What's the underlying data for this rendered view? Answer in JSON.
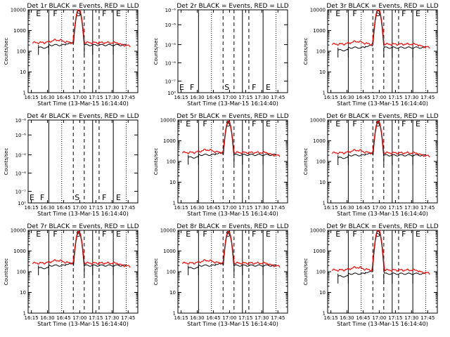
{
  "figure": {
    "x_ticks": [
      "16:15",
      "16:30",
      "16:45",
      "17:00",
      "17:15",
      "17:30",
      "17:45"
    ],
    "x_label": "Start Time (13-Mar-15 16:14:40)",
    "y_label": "Counts/sec"
  },
  "chart_data": [
    {
      "type": "line",
      "title": "Det 1r BLACK = Events, RED = LLD",
      "yscale": "log",
      "ylim": [
        1,
        10000
      ],
      "y_tick_labels": [
        "1",
        "10",
        "100",
        "1000",
        "10000"
      ],
      "has_data": true,
      "peak": 11000,
      "base_red": 260,
      "base_black": 200,
      "segment_labels": [
        "E",
        "F",
        "S",
        "F",
        "E"
      ],
      "series": [
        {
          "name": "Events",
          "color": "#000000"
        },
        {
          "name": "LLD",
          "color": "#ff0000"
        }
      ]
    },
    {
      "type": "line",
      "title": "Det 2r BLACK = Events, RED = LLD",
      "yscale": "log",
      "ylim": [
        1,
        1.000001
      ],
      "y_tick_labels": [
        "10⁻⁶",
        "10⁻⁶",
        "10⁻⁶",
        "10⁻⁶",
        "10⁻⁷",
        "10⁰"
      ],
      "has_data": false,
      "segment_labels": [
        "E",
        "F",
        "S",
        "F",
        "E"
      ],
      "series": []
    },
    {
      "type": "line",
      "title": "Det 3r BLACK = Events, RED = LLD",
      "yscale": "log",
      "ylim": [
        1,
        10000
      ],
      "y_tick_labels": [
        "1",
        "10",
        "100",
        "1000",
        "10000"
      ],
      "has_data": true,
      "peak": 11000,
      "base_red": 220,
      "base_black": 150,
      "segment_labels": [
        "E",
        "F",
        "S",
        "F",
        "E"
      ],
      "series": [
        {
          "name": "Events",
          "color": "#000000"
        },
        {
          "name": "LLD",
          "color": "#ff0000"
        }
      ]
    },
    {
      "type": "line",
      "title": "Det 4r BLACK = Events, RED = LLD",
      "yscale": "log",
      "ylim": [
        1,
        1.000001
      ],
      "y_tick_labels": [
        "10⁻⁶",
        "10⁻⁶",
        "10⁻⁶",
        "10⁻⁶",
        "10⁻⁷",
        "10⁰"
      ],
      "has_data": false,
      "segment_labels": [
        "E",
        "F",
        "S",
        "F",
        "E"
      ],
      "series": []
    },
    {
      "type": "line",
      "title": "Det 5r BLACK = Events, RED = LLD",
      "yscale": "log",
      "ylim": [
        1,
        10000
      ],
      "y_tick_labels": [
        "1",
        "10",
        "100",
        "1000",
        "10000"
      ],
      "has_data": true,
      "peak": 9000,
      "base_red": 270,
      "base_black": 210,
      "segment_labels": [
        "E",
        "F",
        "S",
        "F",
        "E"
      ],
      "series": [
        {
          "name": "Events",
          "color": "#000000"
        },
        {
          "name": "LLD",
          "color": "#ff0000"
        }
      ]
    },
    {
      "type": "line",
      "title": "Det 6r BLACK = Events, RED = LLD",
      "yscale": "log",
      "ylim": [
        1,
        10000
      ],
      "y_tick_labels": [
        "1",
        "10",
        "100",
        "1000",
        "10000"
      ],
      "has_data": true,
      "peak": 9000,
      "base_red": 260,
      "base_black": 200,
      "segment_labels": [
        "E",
        "F",
        "S",
        "F",
        "E"
      ],
      "series": [
        {
          "name": "Events",
          "color": "#000000"
        },
        {
          "name": "LLD",
          "color": "#ff0000"
        }
      ]
    },
    {
      "type": "line",
      "title": "Det 7r BLACK = Events, RED = LLD",
      "yscale": "log",
      "ylim": [
        1,
        10000
      ],
      "y_tick_labels": [
        "1",
        "10",
        "100",
        "1000",
        "10000"
      ],
      "has_data": true,
      "peak": 9000,
      "base_red": 260,
      "base_black": 200,
      "segment_labels": [
        "E",
        "F",
        "S",
        "F",
        "E"
      ],
      "series": [
        {
          "name": "Events",
          "color": "#000000"
        },
        {
          "name": "LLD",
          "color": "#ff0000"
        }
      ]
    },
    {
      "type": "line",
      "title": "Det 8r BLACK = Events, RED = LLD",
      "yscale": "log",
      "ylim": [
        1,
        10000
      ],
      "y_tick_labels": [
        "1",
        "10",
        "100",
        "1000",
        "10000"
      ],
      "has_data": true,
      "peak": 9000,
      "base_red": 260,
      "base_black": 200,
      "segment_labels": [
        "E",
        "F",
        "S",
        "F",
        "E"
      ],
      "series": [
        {
          "name": "Events",
          "color": "#000000"
        },
        {
          "name": "LLD",
          "color": "#ff0000"
        }
      ]
    },
    {
      "type": "line",
      "title": "Det 9r BLACK = Events, RED = LLD",
      "yscale": "log",
      "ylim": [
        1,
        10000
      ],
      "y_tick_labels": [
        "1",
        "10",
        "100",
        "1000",
        "10000"
      ],
      "has_data": true,
      "peak": 11000,
      "base_red": 120,
      "base_black": 80,
      "segment_labels": [
        "E",
        "F",
        "S",
        "F",
        "E"
      ],
      "series": [
        {
          "name": "Events",
          "color": "#000000"
        },
        {
          "name": "LLD",
          "color": "#ff0000"
        }
      ]
    }
  ]
}
